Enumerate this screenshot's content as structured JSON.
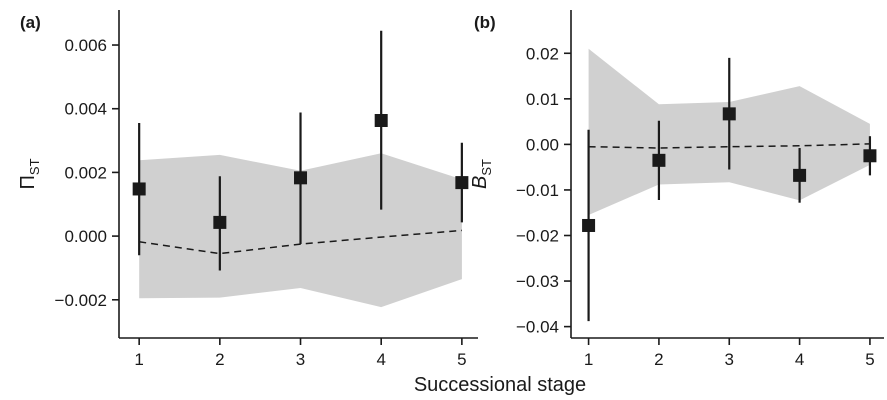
{
  "shared_xlabel": "Successional stage",
  "chart_data": [
    {
      "type": "scatter",
      "panel_label": "(a)",
      "ylabel_main": "Π",
      "ylabel_sub": "ST",
      "xlabel": "",
      "x": [
        1,
        2,
        3,
        4,
        5
      ],
      "xticks": [
        "1",
        "2",
        "3",
        "4",
        "5"
      ],
      "xlim": [
        0.75,
        5.2
      ],
      "ylim": [
        -0.0032,
        0.0071
      ],
      "yticks": [
        -0.002,
        0.0,
        0.002,
        0.004,
        0.006
      ],
      "ytick_labels": [
        "−0.002",
        "0.000",
        "0.002",
        "0.004",
        "0.006"
      ],
      "observed": {
        "y": [
          0.00148,
          0.00043,
          0.00183,
          0.00363,
          0.00168
        ],
        "err_low": [
          -0.0006,
          -0.00108,
          -0.00025,
          0.00083,
          0.00043
        ],
        "err_high": [
          0.00355,
          0.00188,
          0.00388,
          0.00645,
          0.00293
        ]
      },
      "null_mean": [
        -0.00018,
        -0.00055,
        -0.00025,
        -3e-05,
        0.00018
      ],
      "null_band": {
        "upper": [
          0.00238,
          0.00255,
          0.00205,
          0.0026,
          0.00178
        ],
        "lower": [
          -0.00195,
          -0.00193,
          -0.00163,
          -0.00223,
          -0.00135
        ]
      },
      "colors": {
        "marker": "#1a1a1a",
        "band": "#d0d0d0",
        "axis": "#1a1a1a"
      }
    },
    {
      "type": "scatter",
      "panel_label": "(b)",
      "ylabel_main": "B",
      "ylabel_sub": "ST",
      "xlabel": "",
      "x": [
        1,
        2,
        3,
        4,
        5
      ],
      "xticks": [
        "1",
        "2",
        "3",
        "4",
        "5"
      ],
      "xlim": [
        0.75,
        5.2
      ],
      "ylim": [
        -0.0425,
        0.0295
      ],
      "yticks": [
        -0.04,
        -0.03,
        -0.02,
        -0.01,
        0.0,
        0.01,
        0.02
      ],
      "ytick_labels": [
        "−0.04",
        "−0.03",
        "−0.02",
        "−0.01",
        "0.00",
        "0.01",
        "0.02"
      ],
      "observed": {
        "y": [
          -0.0178,
          -0.0035,
          0.0067,
          -0.0068,
          -0.0025
        ],
        "err_low": [
          -0.0388,
          -0.0122,
          -0.0055,
          -0.0128,
          -0.0068
        ],
        "err_high": [
          0.0032,
          0.0052,
          0.019,
          -0.0008,
          0.0018
        ]
      },
      "null_mean": [
        -0.0005,
        -0.0008,
        -0.0005,
        -0.0003,
        0.0001
      ],
      "null_band": {
        "upper": [
          0.021,
          0.0088,
          0.0093,
          0.0128,
          0.0045
        ],
        "lower": [
          -0.0155,
          -0.0088,
          -0.0083,
          -0.0123,
          -0.0045
        ]
      },
      "colors": {
        "marker": "#1a1a1a",
        "band": "#d0d0d0",
        "axis": "#1a1a1a"
      }
    }
  ]
}
